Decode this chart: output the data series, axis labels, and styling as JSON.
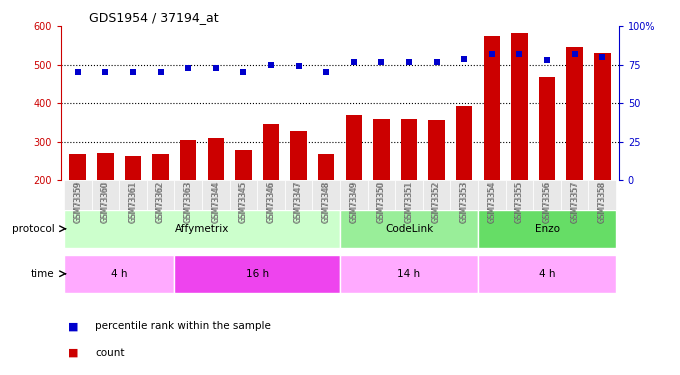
{
  "title": "GDS1954 / 37194_at",
  "samples": [
    "GSM73359",
    "GSM73360",
    "GSM73361",
    "GSM73362",
    "GSM73363",
    "GSM73344",
    "GSM73345",
    "GSM73346",
    "GSM73347",
    "GSM73348",
    "GSM73349",
    "GSM73350",
    "GSM73351",
    "GSM73352",
    "GSM73353",
    "GSM73354",
    "GSM73355",
    "GSM73356",
    "GSM73357",
    "GSM73358"
  ],
  "counts": [
    268,
    270,
    262,
    268,
    303,
    310,
    278,
    345,
    328,
    268,
    368,
    358,
    358,
    355,
    393,
    575,
    582,
    467,
    545,
    530
  ],
  "percentiles": [
    70,
    70,
    70,
    70,
    73,
    73,
    70,
    75,
    74,
    70,
    77,
    77,
    77,
    77,
    79,
    82,
    82,
    78,
    82,
    80
  ],
  "bar_color": "#cc0000",
  "dot_color": "#0000cc",
  "ylim_left": [
    200,
    600
  ],
  "ylim_right": [
    0,
    100
  ],
  "yticks_left": [
    200,
    300,
    400,
    500,
    600
  ],
  "yticks_right": [
    0,
    25,
    50,
    75,
    100
  ],
  "ytick_labels_right": [
    "0",
    "25",
    "50",
    "75",
    "100%"
  ],
  "hlines": [
    300,
    400,
    500
  ],
  "protocol_groups": [
    {
      "label": "Affymetrix",
      "start": 0,
      "end": 9,
      "color": "#ccffcc"
    },
    {
      "label": "CodeLink",
      "start": 10,
      "end": 14,
      "color": "#99ee99"
    },
    {
      "label": "Enzo",
      "start": 15,
      "end": 19,
      "color": "#66dd66"
    }
  ],
  "time_groups": [
    {
      "label": "4 h",
      "start": 0,
      "end": 3,
      "color": "#ffaaff"
    },
    {
      "label": "16 h",
      "start": 4,
      "end": 9,
      "color": "#ee44ee"
    },
    {
      "label": "14 h",
      "start": 10,
      "end": 14,
      "color": "#ffaaff"
    },
    {
      "label": "4 h",
      "start": 15,
      "end": 19,
      "color": "#ffaaff"
    }
  ],
  "legend_items": [
    {
      "label": "count",
      "color": "#cc0000"
    },
    {
      "label": "percentile rank within the sample",
      "color": "#0000cc"
    }
  ],
  "bar_color_hex": "#cc0000",
  "dot_color_hex": "#0000cc",
  "tick_label_color_x": "#888888"
}
